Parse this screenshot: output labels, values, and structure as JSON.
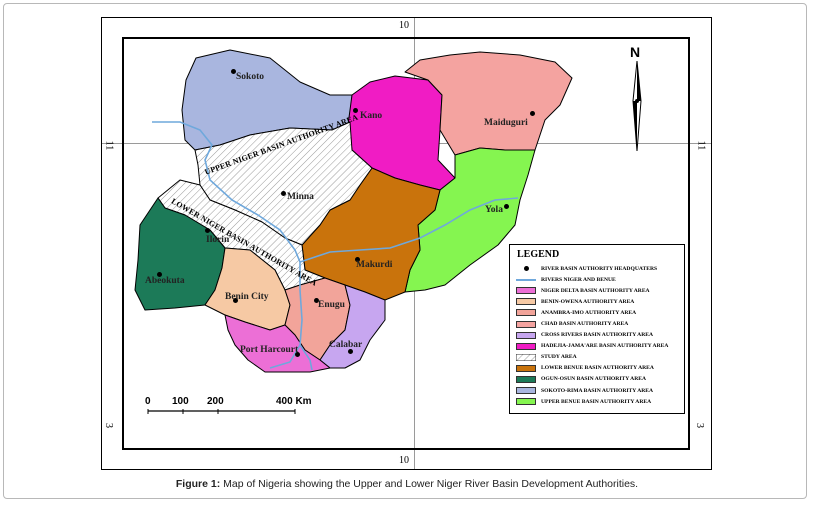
{
  "caption": {
    "label": "Figure 1:",
    "text": "Map of Nigeria showing the Upper and Lower Niger River Basin Development Authorities."
  },
  "graticule": {
    "top": "10",
    "bottom": "10",
    "left": "11",
    "right": "11",
    "left_low": "3",
    "right_low": "3"
  },
  "north_arrow": {
    "label": "N"
  },
  "scale_bar": {
    "ticks": [
      "0",
      "100",
      "200",
      "400 Km"
    ]
  },
  "cities": [
    {
      "name": "Sokoto"
    },
    {
      "name": "Kano"
    },
    {
      "name": "Maiduguri"
    },
    {
      "name": "Minna"
    },
    {
      "name": "Yola"
    },
    {
      "name": "Ilorin"
    },
    {
      "name": "Makurdi"
    },
    {
      "name": "Abeokuta"
    },
    {
      "name": "Benin City"
    },
    {
      "name": "Enugu"
    },
    {
      "name": "Port Harcourt"
    },
    {
      "name": "Calabar"
    }
  ],
  "area_labels": {
    "upper": "UPPER NIGER BASIN AUTHORITY AREA",
    "lower": "LOWER NIGER BASIN AUTHORITY AREA"
  },
  "legend": {
    "title": "LEGEND",
    "items": [
      {
        "label": "RIVER BASIN AUTHORITY HEADQUATERS",
        "kind": "dot",
        "color": "#000000"
      },
      {
        "label": "RIVERS NIGER AND BENUE",
        "kind": "line",
        "color": "#6fa8dc"
      },
      {
        "label": "NIGER DELTA BASIN AUTHORITY AREA",
        "kind": "swatch",
        "color": "#ec6fd6"
      },
      {
        "label": "BENIN-OWENA AUTHORITY AREA",
        "kind": "swatch",
        "color": "#f6c9a4"
      },
      {
        "label": "ANAMBRA-IMO AUTHORITY AREA",
        "kind": "swatch",
        "color": "#f2a49a"
      },
      {
        "label": "CHAD BASIN AUTHORITY AREA",
        "kind": "swatch",
        "color": "#f4a3a0"
      },
      {
        "label": "CROSS RIVERS BASIN AUTHORITY AREA",
        "kind": "swatch",
        "color": "#c7a6f0"
      },
      {
        "label": "HADEJIA-JAMA'ARE BASIN AUTHORITY AREA",
        "kind": "swatch",
        "color": "#f01cc4"
      },
      {
        "label": "STUDY AREA",
        "kind": "hatch",
        "color": "#ffffff"
      },
      {
        "label": "LOWER BENUE BASIN AUTHORITY AREA",
        "kind": "swatch",
        "color": "#c9730c"
      },
      {
        "label": "OGUN-OSUN BASIN AUTHORITY AREA",
        "kind": "swatch",
        "color": "#1c7a58"
      },
      {
        "label": "SOKOTO-RIMA BASIN AUTHORITY AREA",
        "kind": "swatch",
        "color": "#a9b6df"
      },
      {
        "label": "UPPER BENUE BASIN AUTHORITY AREA",
        "kind": "swatch",
        "color": "#85f550"
      }
    ]
  },
  "colors": {
    "sokoto_rima": "#a9b6df",
    "hadejia_jamaare": "#f01cc4",
    "chad": "#f4a3a0",
    "upper_benue": "#85f550",
    "lower_benue": "#c9730c",
    "ogun_osun": "#1c7a58",
    "benin_owena": "#f6c9a4",
    "anambra_imo": "#f2a49a",
    "cross_rivers": "#c7a6f0",
    "niger_delta": "#ec6fd6",
    "river": "#6fa8dc"
  }
}
